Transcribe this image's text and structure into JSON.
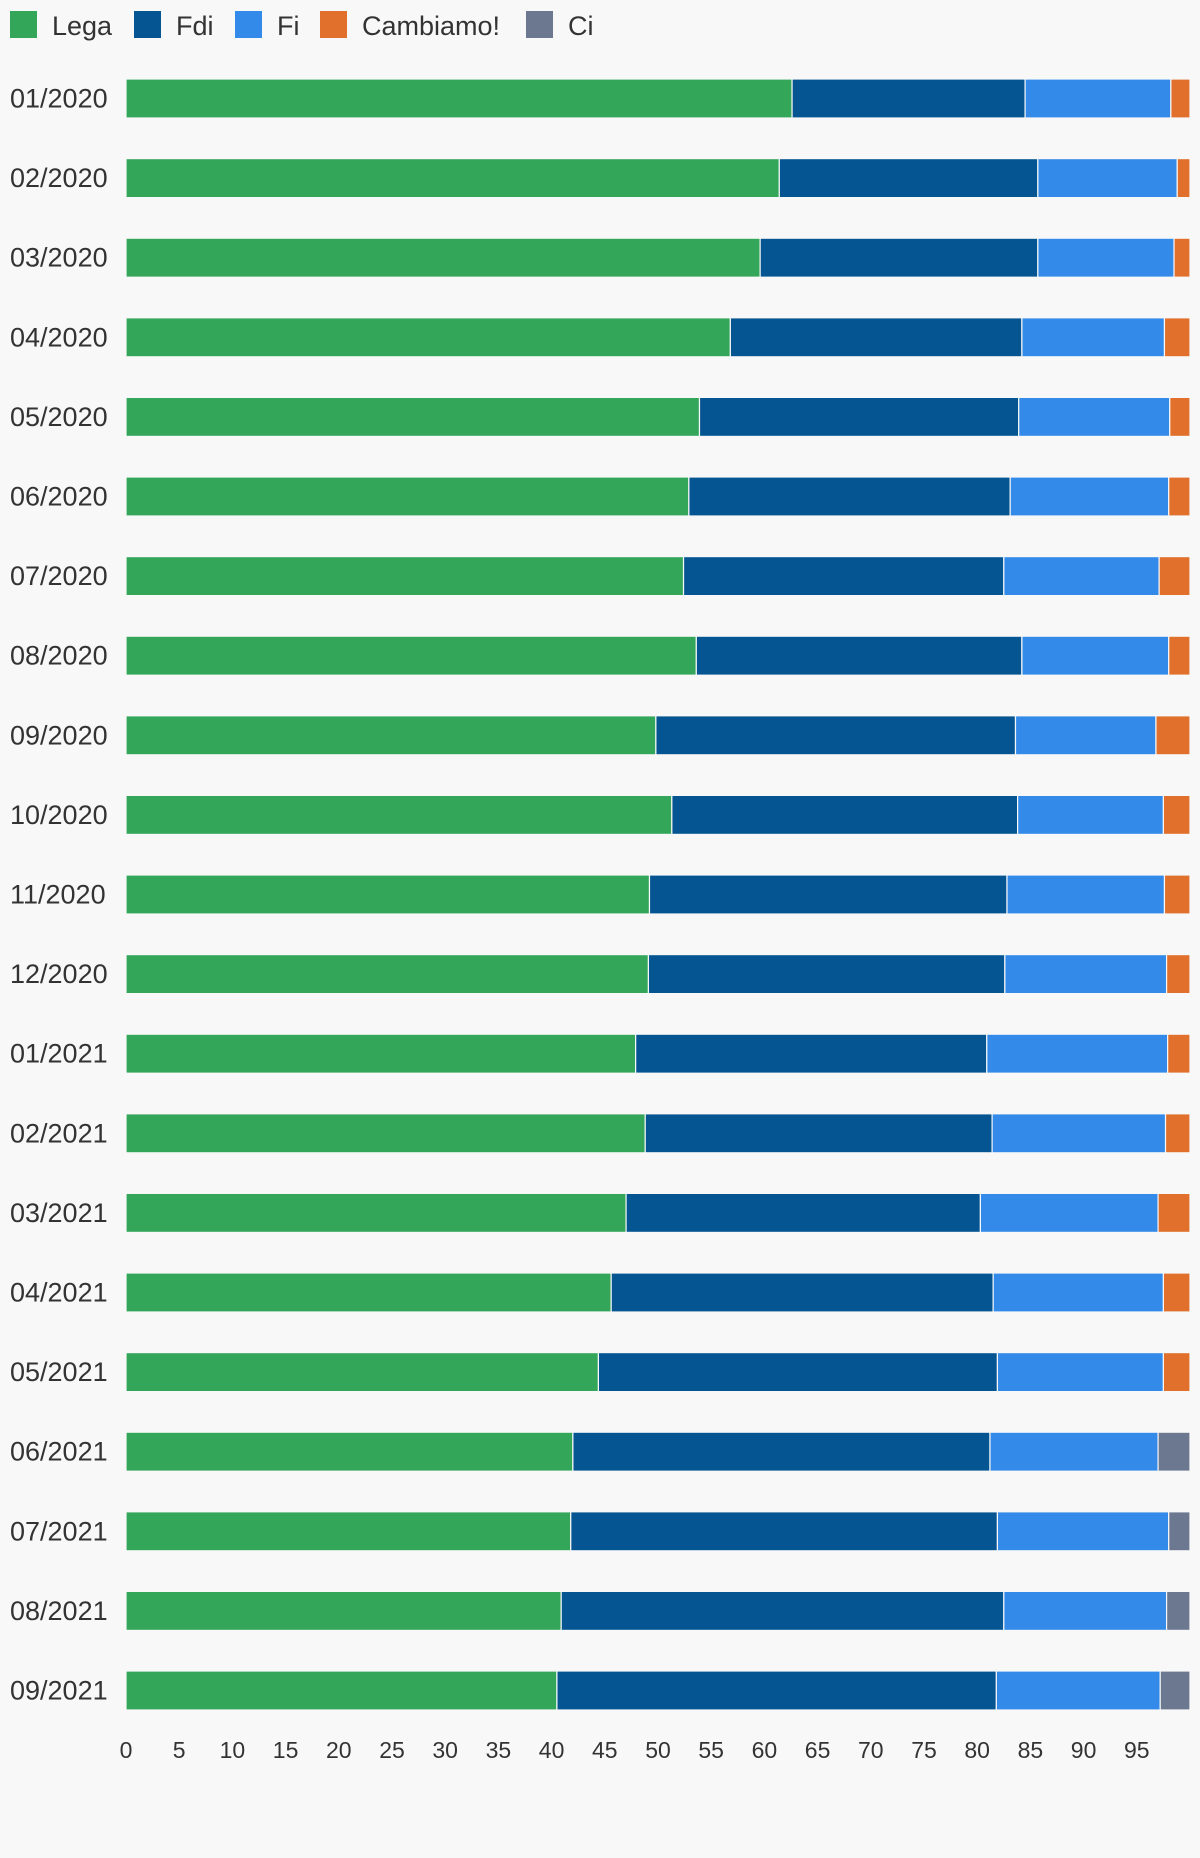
{
  "chart_data": {
    "type": "bar",
    "orientation": "horizontal",
    "stacked": true,
    "categories": [
      "01/2020",
      "02/2020",
      "03/2020",
      "04/2020",
      "05/2020",
      "06/2020",
      "07/2020",
      "08/2020",
      "09/2020",
      "10/2020",
      "11/2020",
      "12/2020",
      "01/2021",
      "02/2021",
      "03/2021",
      "04/2021",
      "05/2021",
      "06/2021",
      "07/2021",
      "08/2021",
      "09/2021"
    ],
    "series": [
      {
        "name": "Lega",
        "color": "#33a65a",
        "values": [
          62.6,
          61.4,
          59.6,
          56.8,
          53.9,
          52.9,
          52.4,
          53.6,
          49.8,
          51.3,
          49.2,
          49.1,
          47.9,
          48.8,
          47.0,
          45.6,
          44.4,
          42.0,
          41.8,
          40.9,
          40.5
        ]
      },
      {
        "name": "Fdi",
        "color": "#045592",
        "values": [
          21.9,
          24.3,
          26.1,
          27.4,
          30.0,
          30.2,
          30.1,
          30.6,
          33.8,
          32.5,
          33.6,
          33.5,
          33.0,
          32.6,
          33.3,
          35.9,
          37.5,
          39.2,
          40.1,
          41.6,
          41.3
        ]
      },
      {
        "name": "Fi",
        "color": "#338ae8",
        "values": [
          13.7,
          13.1,
          12.8,
          13.4,
          14.2,
          14.9,
          14.6,
          13.8,
          13.2,
          13.7,
          14.8,
          15.2,
          17.0,
          16.3,
          16.7,
          16.0,
          15.6,
          15.8,
          16.1,
          15.3,
          15.4
        ]
      },
      {
        "name": "Cambiamo!",
        "color": "#e0702c",
        "values": [
          1.8,
          1.2,
          1.5,
          2.4,
          1.9,
          2.0,
          2.9,
          2.0,
          3.2,
          2.5,
          2.4,
          2.2,
          2.1,
          2.3,
          3.0,
          2.5,
          2.5,
          0,
          0,
          0,
          0
        ]
      },
      {
        "name": "Ci",
        "color": "#6b7890",
        "values": [
          0,
          0,
          0,
          0,
          0,
          0,
          0,
          0,
          0,
          0,
          0,
          0,
          0,
          0,
          0,
          0,
          0,
          3.0,
          2.0,
          2.2,
          2.8
        ]
      }
    ],
    "xlim": [
      0,
      100
    ],
    "xticks": [
      "0",
      "5",
      "10",
      "15",
      "20",
      "25",
      "30",
      "35",
      "40",
      "45",
      "50",
      "55",
      "60",
      "65",
      "70",
      "75",
      "80",
      "85",
      "90",
      "95"
    ],
    "legend_position": "top-left",
    "grid": false
  }
}
